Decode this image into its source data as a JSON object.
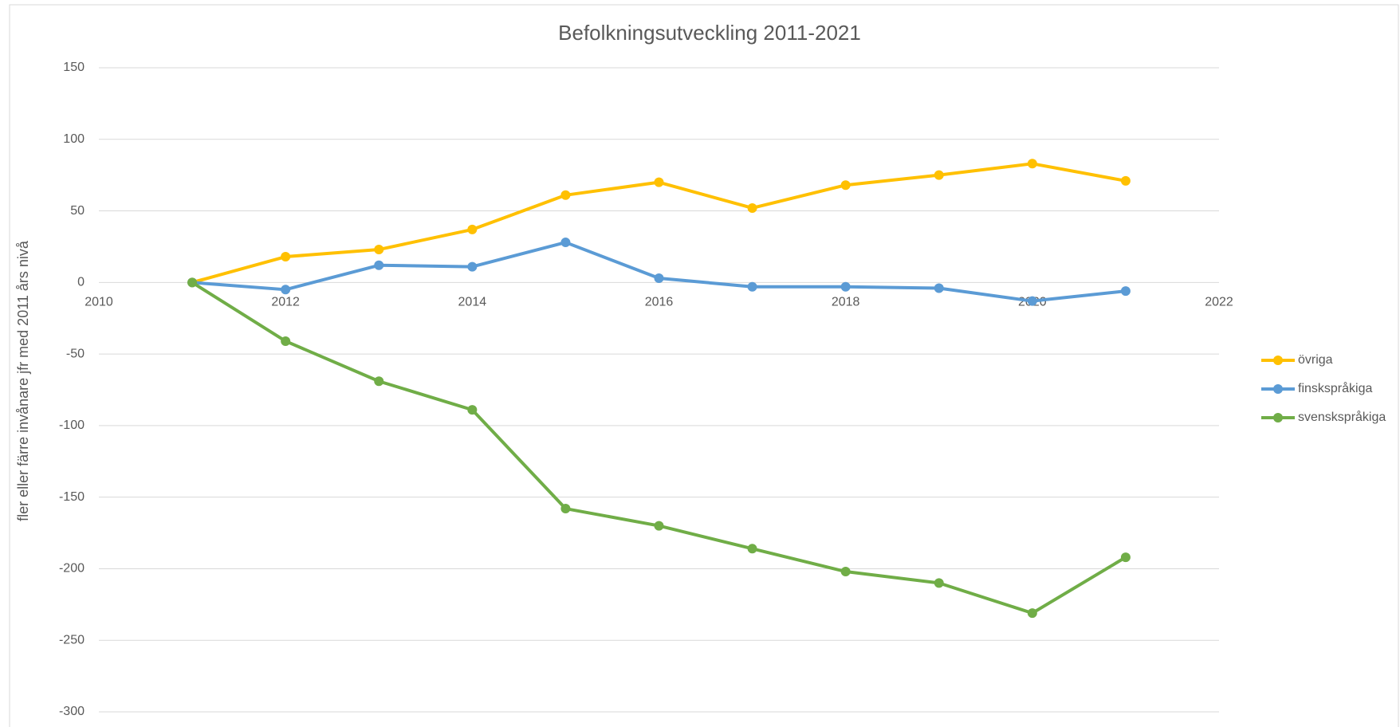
{
  "chart_data": {
    "type": "line",
    "title": "Befolkningsutveckling 2011-2021",
    "y_label": "fler eller färre invånare jfr med 2011 års nivå",
    "x": [
      2011,
      2012,
      2013,
      2014,
      2015,
      2016,
      2017,
      2018,
      2019,
      2020,
      2021
    ],
    "series": [
      {
        "name": "övriga",
        "color": "#ffc000",
        "values": [
          0,
          18,
          23,
          37,
          61,
          70,
          52,
          68,
          75,
          83,
          71
        ]
      },
      {
        "name": "finskspråkiga",
        "color": "#5b9bd5",
        "values": [
          0,
          -5,
          12,
          11,
          28,
          3,
          -3,
          -3,
          -4,
          -13,
          -6
        ]
      },
      {
        "name": "svenskspråkiga",
        "color": "#70ad47",
        "values": [
          0,
          -41,
          -69,
          -89,
          -158,
          -170,
          -186,
          -202,
          -210,
          -231,
          -192
        ]
      }
    ],
    "xlim": [
      2010,
      2022
    ],
    "xticks": [
      2010,
      2012,
      2014,
      2016,
      2018,
      2020,
      2022
    ],
    "ylim": [
      -300,
      150
    ],
    "yticks": [
      -300,
      -250,
      -200,
      -150,
      -100,
      -50,
      0,
      50,
      100,
      150
    ],
    "grid": true,
    "legend": "right"
  }
}
